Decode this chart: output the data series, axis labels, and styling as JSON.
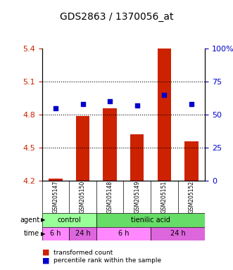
{
  "title": "GDS2863 / 1370056_at",
  "samples": [
    "GSM205147",
    "GSM205150",
    "GSM205148",
    "GSM205149",
    "GSM205151",
    "GSM205152"
  ],
  "bar_values": [
    4.22,
    4.79,
    4.86,
    4.62,
    5.4,
    4.56
  ],
  "bar_bottom": 4.2,
  "percentile_values": [
    55,
    58,
    60,
    57,
    65,
    58
  ],
  "ylim_left": [
    4.2,
    5.4
  ],
  "ylim_right": [
    0,
    100
  ],
  "yticks_left": [
    4.2,
    4.5,
    4.8,
    5.1,
    5.4
  ],
  "yticks_right": [
    0,
    25,
    50,
    75,
    100
  ],
  "ytick_labels_right": [
    "0",
    "25",
    "50",
    "75",
    "100%"
  ],
  "bar_color": "#cc2200",
  "dot_color": "#0000cc",
  "grid_color": "#000000",
  "agent_groups": [
    {
      "label": "control",
      "start": 0,
      "end": 2,
      "color": "#99ff99"
    },
    {
      "label": "tienilic acid",
      "start": 2,
      "end": 6,
      "color": "#66dd66"
    }
  ],
  "time_groups": [
    {
      "label": "6 h",
      "start": 0,
      "end": 1,
      "color": "#ff88ff"
    },
    {
      "label": "24 h",
      "start": 1,
      "end": 2,
      "color": "#dd66dd"
    },
    {
      "label": "6 h",
      "start": 2,
      "end": 4,
      "color": "#ff88ff"
    },
    {
      "label": "24 h",
      "start": 4,
      "end": 6,
      "color": "#dd66dd"
    }
  ],
  "sample_row_color": "#cccccc",
  "agent_label": "agent",
  "time_label": "time",
  "legend_bar_label": "transformed count",
  "legend_dot_label": "percentile rank within the sample",
  "bg_color": "#ffffff"
}
